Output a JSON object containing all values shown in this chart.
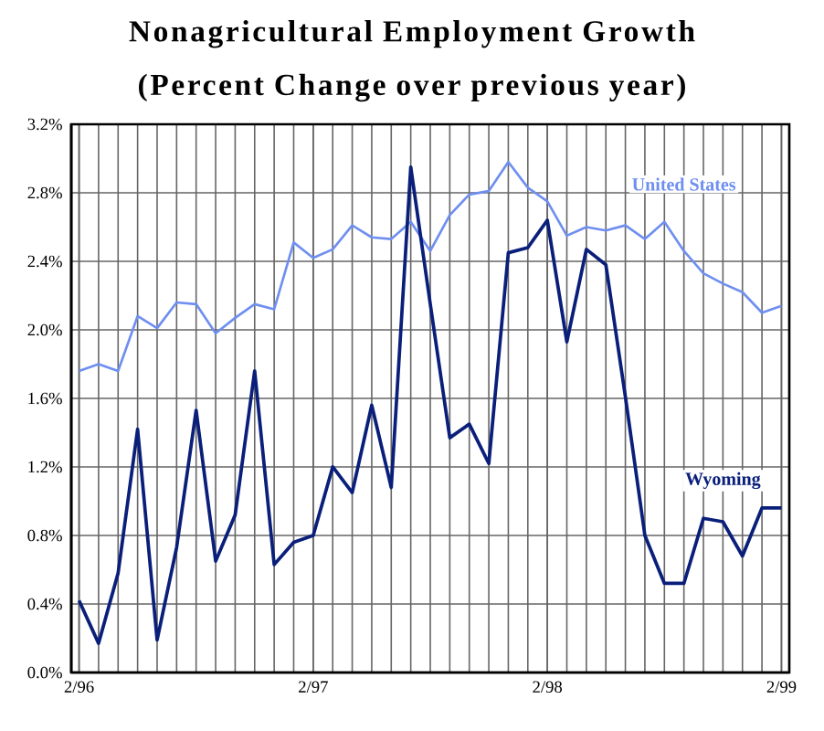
{
  "chart_data": {
    "type": "line",
    "title": "Nonagricultural Employment Growth",
    "subtitle": "(Percent Change over previous year)",
    "categories": [
      "2/96",
      null,
      null,
      null,
      null,
      null,
      null,
      null,
      null,
      null,
      null,
      null,
      "2/97",
      null,
      null,
      null,
      null,
      null,
      null,
      null,
      null,
      null,
      null,
      null,
      "2/98",
      null,
      null,
      null,
      null,
      null,
      null,
      null,
      null,
      null,
      null,
      null,
      "2/99"
    ],
    "series": [
      {
        "name": "United States",
        "color": "#6f8ff0",
        "values": [
          1.76,
          1.8,
          1.76,
          2.08,
          2.01,
          2.16,
          2.15,
          1.98,
          2.07,
          2.15,
          2.12,
          2.51,
          2.42,
          2.47,
          2.61,
          2.54,
          2.53,
          2.63,
          2.46,
          2.67,
          2.79,
          2.81,
          2.98,
          2.83,
          2.75,
          2.55,
          2.6,
          2.58,
          2.61,
          2.53,
          2.63,
          2.46,
          2.33,
          2.27,
          2.22,
          2.1,
          2.14
        ]
      },
      {
        "name": "Wyoming",
        "color": "#0a1f7a",
        "values": [
          0.42,
          0.17,
          0.58,
          1.42,
          0.19,
          0.73,
          1.53,
          0.65,
          0.92,
          1.76,
          0.63,
          0.76,
          0.8,
          1.2,
          1.05,
          1.56,
          1.08,
          2.95,
          2.15,
          1.37,
          1.45,
          1.22,
          2.45,
          2.48,
          2.64,
          1.93,
          2.47,
          2.38,
          1.61,
          0.8,
          0.52,
          0.52,
          0.9,
          0.88,
          0.68,
          0.96,
          0.96
        ]
      }
    ],
    "ylim": [
      0,
      3.2
    ],
    "yticks": [
      {
        "value": 0,
        "label": "0.0%"
      },
      {
        "value": 0.4,
        "label": "0.4%"
      },
      {
        "value": 0.8,
        "label": "0.8%"
      },
      {
        "value": 1.2,
        "label": "1.2%"
      },
      {
        "value": 1.6,
        "label": "1.6%"
      },
      {
        "value": 2.0,
        "label": "2.0%"
      },
      {
        "value": 2.4,
        "label": "2.4%"
      },
      {
        "value": 2.8,
        "label": "2.8%"
      },
      {
        "value": 3.2,
        "label": "3.2%"
      }
    ],
    "grid": true,
    "marker": "none",
    "line_style": "solid",
    "legend": false
  }
}
